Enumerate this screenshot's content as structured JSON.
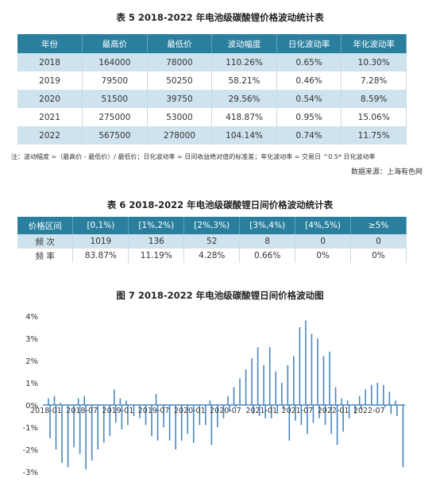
{
  "table5": {
    "title": "表 5  2018-2022 年电池级碳酸锂价格波动统计表",
    "headers": [
      "年份",
      "最高价",
      "最低价",
      "波动幅度",
      "日化波动率",
      "年化波动率"
    ],
    "rows": [
      [
        "2018",
        "164000",
        "78000",
        "110.26%",
        "0.65%",
        "10.30%"
      ],
      [
        "2019",
        "79500",
        "50250",
        "58.21%",
        "0.46%",
        "7.28%"
      ],
      [
        "2020",
        "51500",
        "39750",
        "29.56%",
        "0.54%",
        "8.59%"
      ],
      [
        "2021",
        "275000",
        "53000",
        "418.87%",
        "0.95%",
        "15.06%"
      ],
      [
        "2022",
        "567500",
        "278000",
        "104.14%",
        "0.74%",
        "11.75%"
      ]
    ],
    "note": "注：波动幅度 =（最高价 - 最低价）/ 最低价；日化波动率 = 日间收益绝对值的标准差；年化波动率 = 交易日 ^0.5* 日化波动率",
    "source": "数据来源：上海有色网"
  },
  "table6": {
    "title": "表 6  2018-2022 年电池级碳酸锂日间价格波动统计表",
    "headers": [
      "价格区间",
      "[0,1%)",
      "[1%,2%)",
      "[2%,3%)",
      "[3%,4%)",
      "[4%,5%)",
      "≥5%"
    ],
    "rows": [
      [
        "频  次",
        "1019",
        "136",
        "52",
        "8",
        "0",
        "0"
      ],
      [
        "频  率",
        "83.87%",
        "11.19%",
        "4.28%",
        "0.66%",
        "0%",
        "0%"
      ]
    ]
  },
  "figure7": {
    "title": "图 7 2018-2022 年电池级碳酸锂日间价格波动图"
  },
  "chart_data": {
    "type": "bar",
    "title": "图 7 2018-2022 年电池级碳酸锂日间价格波动图",
    "xlabel": "",
    "ylabel": "",
    "ylim": [
      -3,
      4
    ],
    "y_ticks": [
      "4%",
      "3%",
      "2%",
      "1%",
      "0%",
      "-1%",
      "-2%",
      "-3%"
    ],
    "x_ticks": [
      "2018-01",
      "2018-07",
      "2019-01",
      "2019-07",
      "2020-01",
      "2020-07",
      "2021-01",
      "2021-07",
      "2022-01",
      "2022-07"
    ],
    "grid": false,
    "color": "#4a86c0",
    "note": "daily price change (%) approximated by month",
    "x": [
      "2018-01",
      "2018-02",
      "2018-03",
      "2018-04",
      "2018-05",
      "2018-06",
      "2018-07",
      "2018-08",
      "2018-09",
      "2018-10",
      "2018-11",
      "2018-12",
      "2019-01",
      "2019-02",
      "2019-03",
      "2019-04",
      "2019-05",
      "2019-06",
      "2019-07",
      "2019-08",
      "2019-09",
      "2019-10",
      "2019-11",
      "2019-12",
      "2020-01",
      "2020-02",
      "2020-03",
      "2020-04",
      "2020-05",
      "2020-06",
      "2020-07",
      "2020-08",
      "2020-09",
      "2020-10",
      "2020-11",
      "2020-12",
      "2021-01",
      "2021-02",
      "2021-03",
      "2021-04",
      "2021-05",
      "2021-06",
      "2021-07",
      "2021-08",
      "2021-09",
      "2021-10",
      "2021-11",
      "2021-12",
      "2022-01",
      "2022-02",
      "2022-03",
      "2022-04",
      "2022-05",
      "2022-06",
      "2022-07",
      "2022-08",
      "2022-09",
      "2022-10",
      "2022-11",
      "2022-12"
    ],
    "series": [
      {
        "name": "",
        "positive": [
          0.3,
          0.4,
          0.1,
          0.0,
          0.0,
          0.3,
          0.4,
          0.0,
          0.0,
          0.0,
          0.0,
          0.7,
          0.3,
          0.2,
          0.0,
          0.0,
          0.0,
          0.0,
          0.5,
          0.0,
          0.0,
          0.0,
          0.0,
          0.0,
          0.0,
          0.0,
          0.0,
          0.2,
          0.0,
          0.0,
          0.4,
          0.8,
          1.2,
          1.6,
          2.1,
          2.6,
          1.8,
          2.6,
          1.5,
          1.0,
          1.8,
          2.2,
          3.5,
          3.8,
          3.2,
          3.0,
          2.2,
          2.4,
          0.8,
          0.3,
          0.2,
          0.0,
          0.4,
          0.7,
          0.9,
          1.0,
          0.9,
          0.6,
          0.2,
          0.0
        ],
        "negative": [
          -1.5,
          -2.0,
          -2.6,
          -2.8,
          -1.9,
          -2.2,
          -2.9,
          -2.5,
          -2.0,
          -1.7,
          -1.4,
          -0.8,
          -1.1,
          -0.9,
          -0.5,
          -0.6,
          -0.9,
          -1.4,
          -1.6,
          -1.0,
          -1.6,
          -2.0,
          -1.6,
          -1.3,
          -1.7,
          -0.9,
          -0.9,
          -1.8,
          -1.0,
          -0.6,
          -0.3,
          -0.1,
          0.0,
          0.0,
          -0.4,
          -0.5,
          -0.6,
          -0.6,
          -0.4,
          -0.2,
          -1.6,
          -0.7,
          -0.9,
          -1.3,
          -0.8,
          -0.6,
          -0.9,
          -1.3,
          -1.8,
          -1.2,
          -0.6,
          -0.4,
          -0.2,
          0.0,
          0.0,
          0.0,
          -0.1,
          -0.4,
          -0.5,
          -2.8
        ]
      }
    ]
  }
}
